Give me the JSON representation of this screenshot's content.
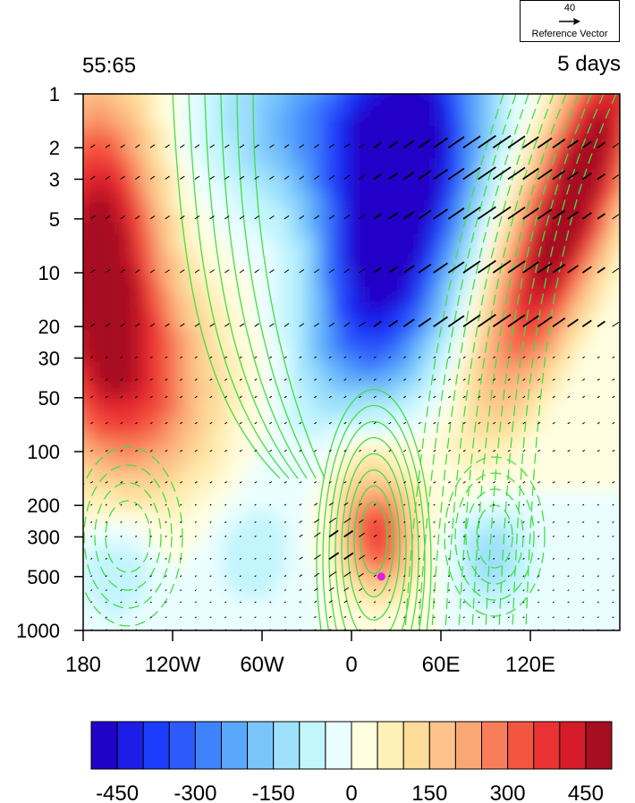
{
  "chart_data": {
    "type": "heatmap",
    "title_left": "55:65",
    "title_right": "5 days",
    "x": {
      "range": [
        180,
        540
      ],
      "ticks": [
        {
          "value": 180,
          "label": "180"
        },
        {
          "value": 240,
          "label": "120W"
        },
        {
          "value": 300,
          "label": "60W"
        },
        {
          "value": 360,
          "label": "0"
        },
        {
          "value": 420,
          "label": "60E"
        },
        {
          "value": 480,
          "label": "120E"
        }
      ]
    },
    "y": {
      "scale": "log",
      "range": [
        1,
        1000
      ],
      "ticks": [
        {
          "value": 1,
          "label": "1"
        },
        {
          "value": 2,
          "label": "2"
        },
        {
          "value": 3,
          "label": "3"
        },
        {
          "value": 5,
          "label": "5"
        },
        {
          "value": 10,
          "label": "10"
        },
        {
          "value": 20,
          "label": "20"
        },
        {
          "value": 30,
          "label": "30"
        },
        {
          "value": 50,
          "label": "50"
        },
        {
          "value": 100,
          "label": "100"
        },
        {
          "value": 200,
          "label": "200"
        },
        {
          "value": 300,
          "label": "300"
        },
        {
          "value": 500,
          "label": "500"
        },
        {
          "value": 1000,
          "label": "1000"
        }
      ]
    },
    "colorbar": {
      "colors": [
        "#2103c8",
        "#1c1ee8",
        "#1b3cfc",
        "#2d5afa",
        "#3f83fb",
        "#5aa8fb",
        "#7ac6fc",
        "#9fe1fc",
        "#c3f5fd",
        "#eafeff",
        "#fffee0",
        "#fff0b8",
        "#fddc9a",
        "#fdc38a",
        "#fba774",
        "#f87e5a",
        "#f4553f",
        "#ec3134",
        "#d61c2a",
        "#a70e20"
      ],
      "ticks": [
        {
          "value": -450,
          "label": "-450"
        },
        {
          "value": -300,
          "label": "-300"
        },
        {
          "value": -150,
          "label": "-150"
        },
        {
          "value": 0,
          "label": "0"
        },
        {
          "value": 150,
          "label": "150"
        },
        {
          "value": 300,
          "label": "300"
        },
        {
          "value": 450,
          "label": "450"
        }
      ],
      "range": [
        -500,
        500
      ]
    },
    "reference_vector": {
      "value": "40",
      "label": "Reference Vector"
    },
    "marker": {
      "lon": 380,
      "p": 500,
      "color": "#e020e0"
    },
    "contour_color": "#44dd44"
  }
}
